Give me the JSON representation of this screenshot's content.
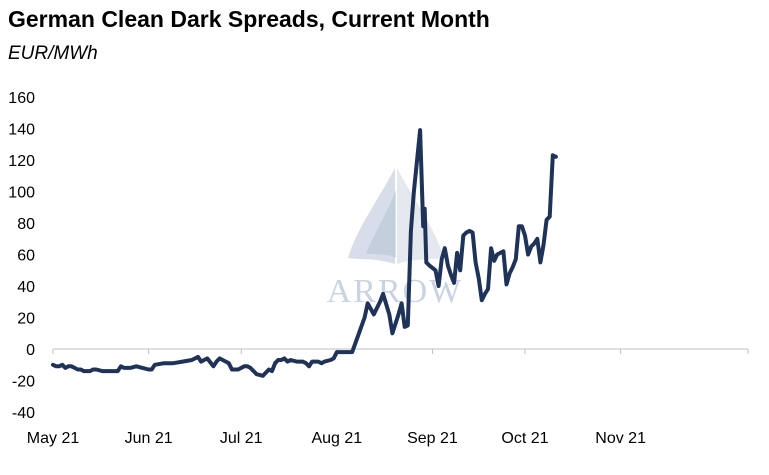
{
  "chart_data": {
    "type": "line",
    "title": "German Clean Dark Spreads, Current Month",
    "subtitle": "EUR/MWh",
    "ylim": [
      -40,
      160
    ],
    "yticks": [
      -40,
      -20,
      0,
      20,
      40,
      60,
      80,
      100,
      120,
      140,
      160
    ],
    "x_ticks": [
      {
        "label": "May 21",
        "day": 0
      },
      {
        "label": "Jun 21",
        "day": 31
      },
      {
        "label": "Jul 21",
        "day": 61
      },
      {
        "label": "Aug 21",
        "day": 92
      },
      {
        "label": "Sep 21",
        "day": 123
      },
      {
        "label": "Oct 21",
        "day": 153
      },
      {
        "label": "Nov 21",
        "day": 184
      }
    ],
    "grid": false,
    "legend": "none",
    "line_color": "#1f3358",
    "series": [
      {
        "points": [
          [
            0,
            -10
          ],
          [
            1,
            -11
          ],
          [
            2,
            -11
          ],
          [
            3,
            -10
          ],
          [
            4,
            -12
          ],
          [
            5,
            -11
          ],
          [
            6,
            -11
          ],
          [
            7,
            -12
          ],
          [
            8,
            -13
          ],
          [
            9,
            -13
          ],
          [
            10,
            -14
          ],
          [
            12,
            -14
          ],
          [
            13,
            -13
          ],
          [
            14,
            -13
          ],
          [
            16,
            -14
          ],
          [
            18,
            -14
          ],
          [
            20,
            -14
          ],
          [
            21,
            -14
          ],
          [
            22,
            -11
          ],
          [
            23,
            -12
          ],
          [
            25,
            -12
          ],
          [
            27,
            -11
          ],
          [
            29,
            -12
          ],
          [
            31,
            -13
          ],
          [
            32,
            -13
          ],
          [
            33,
            -10
          ],
          [
            36,
            -9
          ],
          [
            39,
            -9
          ],
          [
            42,
            -8
          ],
          [
            45,
            -7
          ],
          [
            47,
            -5
          ],
          [
            48,
            -8
          ],
          [
            50,
            -6
          ],
          [
            52,
            -11
          ],
          [
            53,
            -8
          ],
          [
            54,
            -6
          ],
          [
            56,
            -8
          ],
          [
            57,
            -9
          ],
          [
            58,
            -13
          ],
          [
            60,
            -13
          ],
          [
            62,
            -11
          ],
          [
            63,
            -11
          ],
          [
            64,
            -12
          ],
          [
            66,
            -16
          ],
          [
            68,
            -17
          ],
          [
            69,
            -15
          ],
          [
            70,
            -13
          ],
          [
            71,
            -14
          ],
          [
            72,
            -9
          ],
          [
            73,
            -7
          ],
          [
            74,
            -7
          ],
          [
            75,
            -6
          ],
          [
            76,
            -8
          ],
          [
            77,
            -7
          ],
          [
            79,
            -8
          ],
          [
            81,
            -8
          ],
          [
            82,
            -9
          ],
          [
            83,
            -11
          ],
          [
            84,
            -8
          ],
          [
            86,
            -8
          ],
          [
            87,
            -9
          ],
          [
            88,
            -8
          ],
          [
            90,
            -7
          ],
          [
            91,
            -6
          ],
          [
            92,
            -2
          ],
          [
            94,
            -2
          ],
          [
            96,
            -2
          ],
          [
            97,
            -2
          ],
          [
            99,
            9
          ],
          [
            101,
            20
          ],
          [
            102,
            29
          ],
          [
            104,
            22
          ],
          [
            106,
            30
          ],
          [
            107,
            35
          ],
          [
            109,
            22
          ],
          [
            110,
            10
          ],
          [
            112,
            22
          ],
          [
            113,
            29
          ],
          [
            114,
            14
          ],
          [
            115,
            15
          ],
          [
            116,
            75
          ],
          [
            117,
            100
          ],
          [
            119,
            139
          ],
          [
            120,
            78
          ],
          [
            120.5,
            89
          ],
          [
            121,
            55
          ],
          [
            122,
            53
          ],
          [
            124,
            50
          ],
          [
            125,
            40
          ],
          [
            126,
            57
          ],
          [
            127,
            64
          ],
          [
            128,
            53
          ],
          [
            129,
            47
          ],
          [
            130,
            42
          ],
          [
            131,
            61
          ],
          [
            132,
            50
          ],
          [
            133,
            72
          ],
          [
            134,
            74
          ],
          [
            135,
            75
          ],
          [
            136,
            74
          ],
          [
            137,
            55
          ],
          [
            138,
            45
          ],
          [
            139,
            31
          ],
          [
            140,
            35
          ],
          [
            141,
            38
          ],
          [
            142,
            64
          ],
          [
            143,
            56
          ],
          [
            144,
            60
          ],
          [
            145,
            61
          ],
          [
            146,
            62
          ],
          [
            147,
            41
          ],
          [
            148,
            48
          ],
          [
            149,
            52
          ],
          [
            150,
            57
          ],
          [
            151,
            78
          ],
          [
            152,
            78
          ],
          [
            153,
            72
          ],
          [
            154,
            60
          ],
          [
            155,
            65
          ],
          [
            156,
            67
          ],
          [
            157,
            70
          ],
          [
            158,
            55
          ],
          [
            159,
            66
          ],
          [
            160,
            82
          ],
          [
            161,
            84
          ],
          [
            162,
            123
          ],
          [
            163,
            122
          ]
        ]
      }
    ]
  },
  "watermark": {
    "text": "ARROW",
    "colors": {
      "light": "#c9d3e1",
      "dark": "#aab9cf"
    }
  }
}
